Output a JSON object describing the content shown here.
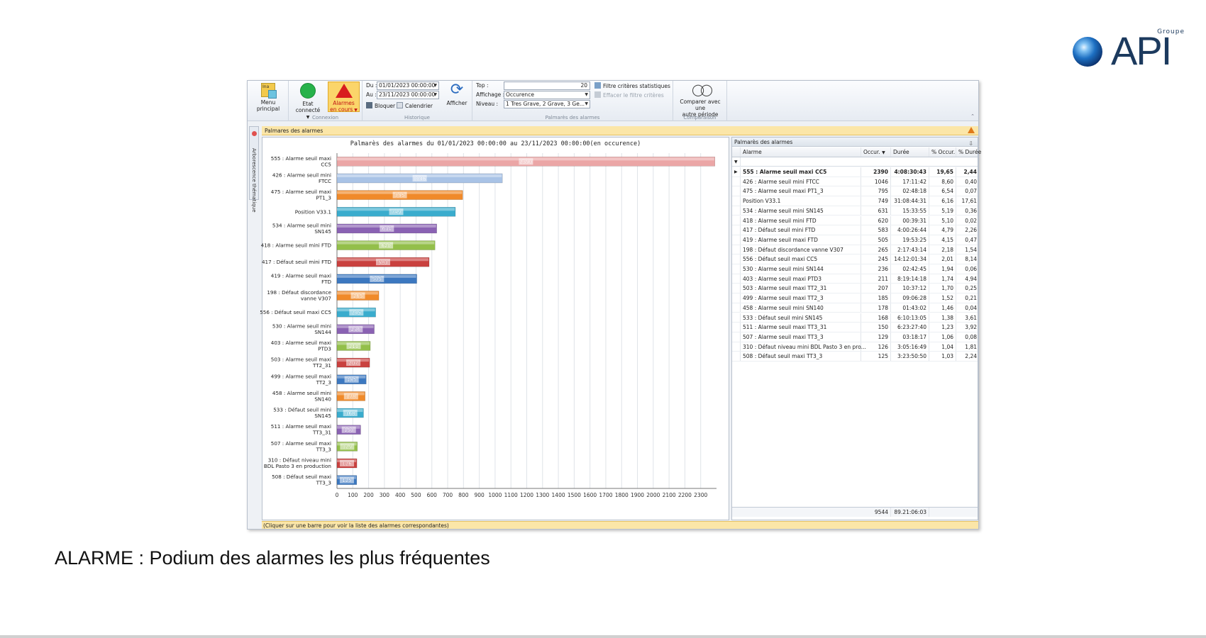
{
  "logo": {
    "groupe": "Groupe",
    "word": "API"
  },
  "caption": "ALARME : Podium des alarmes les plus fréquentes",
  "ribbon": {
    "menu_label": "Menu principal",
    "menu_icon": "Ina",
    "etat_label": "Etat connecté",
    "alarmes_label_1": "Alarmes",
    "alarmes_label_2": "en cours",
    "connexion_group": "Connexion",
    "du_label": "Du :",
    "du_value": "01/01/2023 00:00:00",
    "au_label": "Au :",
    "au_value": "23/11/2023 00:00:00",
    "bloquer_label": "Bloquer",
    "calendrier_label": "Calendrier",
    "afficher_label": "Afficher",
    "historique_group": "Historique",
    "top_label": "Top :",
    "top_value": "20",
    "affichage_label": "Affichage :",
    "affichage_value": "Occurence",
    "niveau_label": "Niveau :",
    "niveau_value": "1 Tres Grave, 2 Grave, 3 Ge...",
    "filtre_label": "Filtre critères statistiques",
    "effacer_label": "Effacer le filtre critères",
    "palmares_group": "Palmarès des alarmes",
    "comparer_label_1": "Comparer avec une",
    "comparer_label_2": "autre période",
    "comparaison_group": "Comparaison"
  },
  "tab_label": "Palmares des alarmes",
  "side_tab_label": "Arborescence thématique",
  "status_text": "(Cliquer sur une barre pour voir la liste des alarmes correspondantes)",
  "colors": {
    "accent": "#fbe6a8",
    "alarm": "#d81e1e",
    "connected": "#27b24a"
  },
  "chart_data": {
    "type": "bar",
    "orientation": "horizontal",
    "title": "Palmarès des alarmes du 01/01/2023 00:00:00 au 23/11/2023 00:00:00(en occurence)",
    "xlim": [
      0,
      2400
    ],
    "xticks": [
      0,
      100,
      200,
      300,
      400,
      500,
      600,
      700,
      800,
      900,
      1000,
      1100,
      1200,
      1300,
      1400,
      1500,
      1600,
      1700,
      1800,
      1900,
      2000,
      2100,
      2200,
      2300
    ],
    "grid": true,
    "categories": [
      [
        "555 : Alarme seuil maxi",
        "CC5"
      ],
      [
        "426 : Alarme seuil mini",
        "FTCC"
      ],
      [
        "475 : Alarme seuil maxi",
        "PT1_3"
      ],
      [
        "Position V33.1"
      ],
      [
        "534 : Alarme seuil mini",
        "SN145"
      ],
      [
        "418 : Alarme seuil mini FTD"
      ],
      [
        "417 : Défaut seuil mini FTD"
      ],
      [
        "419 : Alarme seuil maxi",
        "FTD"
      ],
      [
        "198 : Défaut discordance",
        "vanne V307"
      ],
      [
        "556 : Défaut seuil maxi CC5"
      ],
      [
        "530 : Alarme seuil mini",
        "SN144"
      ],
      [
        "403 : Alarme seuil maxi",
        "PTD3"
      ],
      [
        "503 : Alarme seuil maxi",
        "TT2_31"
      ],
      [
        "499 : Alarme seuil maxi",
        "TT2_3"
      ],
      [
        "458 : Alarme seuil mini",
        "SN140"
      ],
      [
        "533 : Défaut seuil mini",
        "SN145"
      ],
      [
        "511 : Alarme seuil maxi",
        "TT3_31"
      ],
      [
        "507 : Alarme seuil maxi",
        "TT3_3"
      ],
      [
        "310 : Défaut niveau mini",
        "BDL Pasto 3 en production"
      ],
      [
        "508 : Défaut seuil maxi",
        "TT3_3"
      ]
    ],
    "values": [
      2390,
      1046,
      795,
      749,
      631,
      620,
      583,
      505,
      265,
      245,
      236,
      211,
      207,
      185,
      178,
      168,
      150,
      129,
      126,
      125
    ],
    "bar_colors": [
      "#eba6a6",
      "#a9c3e6",
      "#f08a2a",
      "#3aaccd",
      "#8a62b3",
      "#93bf4a",
      "#c9413f",
      "#3c78c0",
      "#f08a2a",
      "#3aaccd",
      "#8a62b3",
      "#93bf4a",
      "#c9413f",
      "#3c78c0",
      "#f08a2a",
      "#3aaccd",
      "#8a62b3",
      "#93bf4a",
      "#c9413f",
      "#3c78c0"
    ]
  },
  "grid": {
    "title": "Palmarès des alarmes",
    "headers": {
      "alarme": "Alarme",
      "occur": "Occur.",
      "duree": "Durée",
      "pct_occur": "% Occur.",
      "pct_duree": "% Durée"
    },
    "rows": [
      {
        "alarme": "555 : Alarme seuil maxi CC5",
        "occur": "2390",
        "duree": "4:08:30:43",
        "pct_occur": "19,65",
        "pct_duree": "2,44"
      },
      {
        "alarme": "426 : Alarme seuil mini FTCC",
        "occur": "1046",
        "duree": "17:11:42",
        "pct_occur": "8,60",
        "pct_duree": "0,40"
      },
      {
        "alarme": "475 : Alarme seuil maxi PT1_3",
        "occur": "795",
        "duree": "02:48:18",
        "pct_occur": "6,54",
        "pct_duree": "0,07"
      },
      {
        "alarme": "Position V33.1",
        "occur": "749",
        "duree": "31:08:44:31",
        "pct_occur": "6,16",
        "pct_duree": "17,61"
      },
      {
        "alarme": "534 : Alarme seuil mini SN145",
        "occur": "631",
        "duree": "15:33:55",
        "pct_occur": "5,19",
        "pct_duree": "0,36"
      },
      {
        "alarme": "418 : Alarme seuil mini FTD",
        "occur": "620",
        "duree": "00:39:31",
        "pct_occur": "5,10",
        "pct_duree": "0,02"
      },
      {
        "alarme": "417 : Défaut seuil mini FTD",
        "occur": "583",
        "duree": "4:00:26:44",
        "pct_occur": "4,79",
        "pct_duree": "2,26"
      },
      {
        "alarme": "419 : Alarme seuil maxi FTD",
        "occur": "505",
        "duree": "19:53:25",
        "pct_occur": "4,15",
        "pct_duree": "0,47"
      },
      {
        "alarme": "198 : Défaut discordance vanne V307",
        "occur": "265",
        "duree": "2:17:43:14",
        "pct_occur": "2,18",
        "pct_duree": "1,54"
      },
      {
        "alarme": "556 : Défaut seuil maxi CC5",
        "occur": "245",
        "duree": "14:12:01:34",
        "pct_occur": "2,01",
        "pct_duree": "8,14"
      },
      {
        "alarme": "530 : Alarme seuil mini SN144",
        "occur": "236",
        "duree": "02:42:45",
        "pct_occur": "1,94",
        "pct_duree": "0,06"
      },
      {
        "alarme": "403 : Alarme seuil maxi PTD3",
        "occur": "211",
        "duree": "8:19:14:18",
        "pct_occur": "1,74",
        "pct_duree": "4,94"
      },
      {
        "alarme": "503 : Alarme seuil maxi TT2_31",
        "occur": "207",
        "duree": "10:37:12",
        "pct_occur": "1,70",
        "pct_duree": "0,25"
      },
      {
        "alarme": "499 : Alarme seuil maxi TT2_3",
        "occur": "185",
        "duree": "09:06:28",
        "pct_occur": "1,52",
        "pct_duree": "0,21"
      },
      {
        "alarme": "458 : Alarme seuil mini SN140",
        "occur": "178",
        "duree": "01:43:02",
        "pct_occur": "1,46",
        "pct_duree": "0,04"
      },
      {
        "alarme": "533 : Défaut seuil mini SN145",
        "occur": "168",
        "duree": "6:10:13:05",
        "pct_occur": "1,38",
        "pct_duree": "3,61"
      },
      {
        "alarme": "511 : Alarme seuil maxi TT3_31",
        "occur": "150",
        "duree": "6:23:27:40",
        "pct_occur": "1,23",
        "pct_duree": "3,92"
      },
      {
        "alarme": "507 : Alarme seuil maxi TT3_3",
        "occur": "129",
        "duree": "03:18:17",
        "pct_occur": "1,06",
        "pct_duree": "0,08"
      },
      {
        "alarme": "310 : Défaut niveau mini BDL Pasto 3 en pro...",
        "occur": "126",
        "duree": "3:05:16:49",
        "pct_occur": "1,04",
        "pct_duree": "1,81"
      },
      {
        "alarme": "508 : Défaut seuil maxi TT3_3",
        "occur": "125",
        "duree": "3:23:50:50",
        "pct_occur": "1,03",
        "pct_duree": "2,24"
      }
    ],
    "total_occur": "9544",
    "total_duree": "89.21:06:03"
  }
}
